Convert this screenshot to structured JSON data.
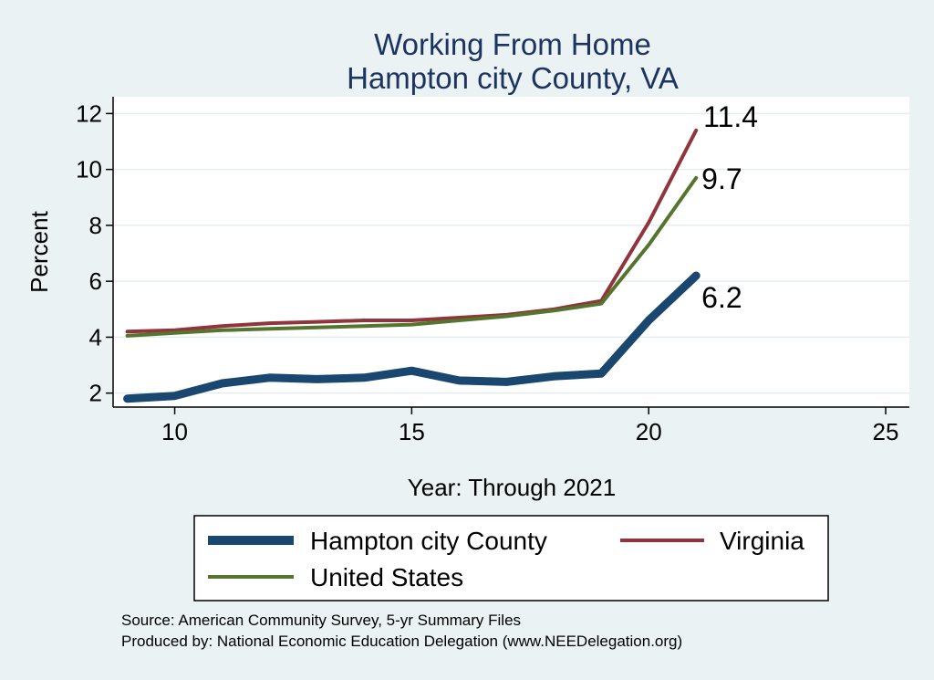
{
  "chart_data": {
    "type": "line",
    "title": "Working From Home",
    "subtitle": "Hampton city County, VA",
    "xlabel": "Year: Through 2021",
    "ylabel": "Percent",
    "xlim": [
      8.7,
      25.5
    ],
    "ylim": [
      1.5,
      12.6
    ],
    "xticks": [
      "10",
      "15",
      "20",
      "25"
    ],
    "yticks": [
      "2",
      "4",
      "6",
      "8",
      "10",
      "12"
    ],
    "grid": true,
    "legend_position": "bottom",
    "x": [
      9,
      10,
      11,
      12,
      13,
      14,
      15,
      16,
      17,
      18,
      19,
      20,
      21
    ],
    "series": [
      {
        "name": "Hampton city County",
        "color": "#1a476f",
        "values": [
          1.8,
          1.9,
          2.35,
          2.55,
          2.5,
          2.55,
          2.8,
          2.45,
          2.4,
          2.6,
          2.7,
          4.6,
          6.2
        ],
        "end_label": "6.2"
      },
      {
        "name": "Virginia",
        "color": "#90353b",
        "values": [
          4.2,
          4.25,
          4.4,
          4.5,
          4.55,
          4.6,
          4.6,
          4.7,
          4.8,
          5.0,
          5.3,
          8.1,
          11.4
        ],
        "end_label": "11.4"
      },
      {
        "name": "United States",
        "color": "#55752f",
        "values": [
          4.05,
          4.15,
          4.25,
          4.3,
          4.35,
          4.4,
          4.45,
          4.6,
          4.75,
          4.95,
          5.2,
          7.3,
          9.7
        ],
        "end_label": "9.7"
      }
    ]
  },
  "notes": {
    "source": "Source: American Community Survey, 5-yr Summary Files",
    "produced": "Produced by: National Economic Education Delegation (www.NEEDelegation.org)"
  }
}
